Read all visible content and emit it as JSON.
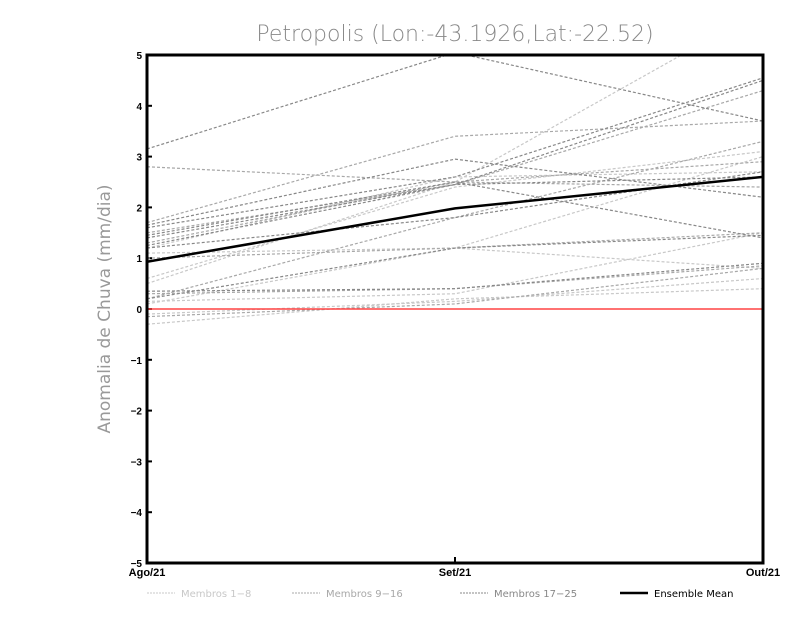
{
  "chart_data": {
    "type": "line",
    "title": "Petropolis (Lon:-43.1926,Lat:-22.52)",
    "xlabel": "",
    "ylabel": "Anomalia de Chuva (mm/dia)",
    "categories": [
      "Ago/21",
      "Set/21",
      "Out/21"
    ],
    "ylim": [
      -5,
      5
    ],
    "yticks": [
      "-5",
      "-4",
      "-3",
      "-2",
      "-1",
      "0",
      "1",
      "2",
      "3",
      "4",
      "5"
    ],
    "zero_line_color": "#ff4444",
    "legend_position": "bottom",
    "groups": [
      {
        "name": "Membros 1-8",
        "color": "#c8c8c8",
        "series": [
          [
            0.5,
            2.5,
            5.9
          ],
          [
            0.1,
            1.2,
            3.0
          ],
          [
            1.2,
            2.6,
            2.7
          ],
          [
            -0.3,
            0.2,
            0.4
          ],
          [
            0.15,
            0.3,
            1.5
          ],
          [
            1.1,
            1.2,
            0.8
          ],
          [
            0.6,
            2.4,
            3.1
          ],
          [
            -0.1,
            0.15,
            0.6
          ]
        ]
      },
      {
        "name": "Membros 9-16",
        "color": "#a8a8a8",
        "series": [
          [
            2.8,
            2.5,
            2.4
          ],
          [
            1.7,
            3.4,
            3.7
          ],
          [
            0.2,
            1.8,
            3.3
          ],
          [
            1.3,
            2.5,
            2.9
          ],
          [
            1.0,
            1.2,
            1.5
          ],
          [
            0.3,
            0.4,
            0.85
          ],
          [
            1.5,
            2.45,
            4.3
          ],
          [
            -0.15,
            0.1,
            0.8
          ]
        ]
      },
      {
        "name": "Membros 17-25",
        "color": "#888888",
        "series": [
          [
            3.15,
            5.05,
            3.7
          ],
          [
            1.65,
            2.95,
            2.2
          ],
          [
            1.6,
            2.6,
            4.55
          ],
          [
            1.45,
            2.5,
            1.4
          ],
          [
            1.2,
            1.8,
            2.7
          ],
          [
            0.35,
            0.4,
            0.9
          ],
          [
            1.25,
            2.45,
            4.5
          ],
          [
            0.2,
            1.2,
            1.45
          ],
          [
            1.4,
            2.45,
            2.6
          ]
        ]
      }
    ],
    "ensemble_mean": {
      "name": "Ensemble Mean",
      "color": "#000000",
      "values": [
        0.93,
        1.98,
        2.6
      ]
    }
  }
}
